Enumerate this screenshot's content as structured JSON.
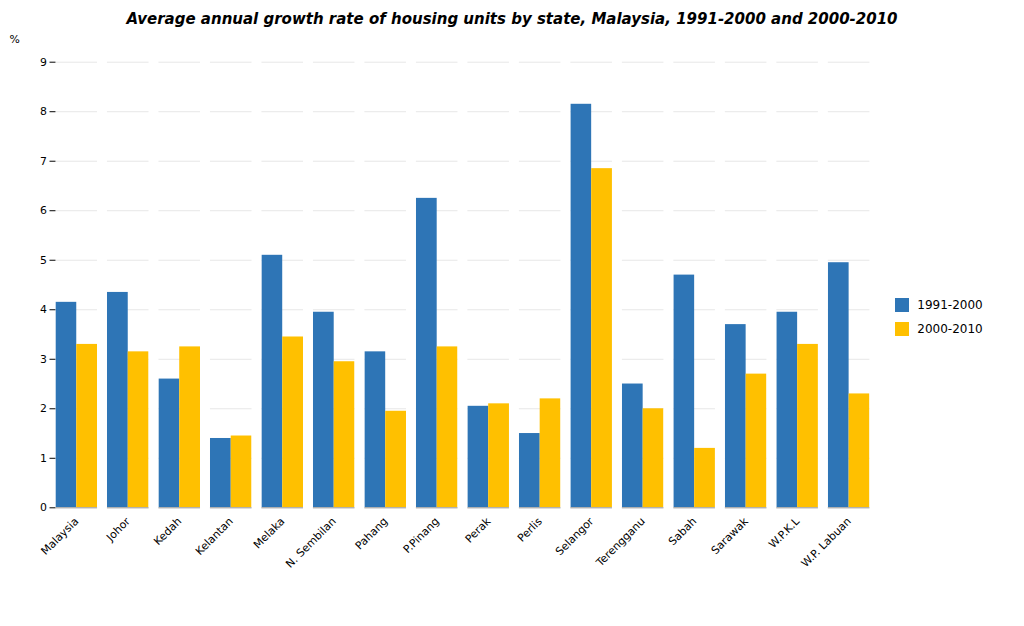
{
  "chart_data": {
    "type": "bar",
    "title": "Average annual growth rate  of housing units by state, Malaysia, 1991-2000 and 2000-2010",
    "categories": [
      "Malaysia",
      "Johor",
      "Kedah",
      "Kelantan",
      "Melaka",
      "N. Sembilan",
      "Pahang",
      "P.Pinang",
      "Perak",
      "Perlis",
      "Selangor",
      "Terengganu",
      "Sabah",
      "Sarawak",
      "W.P.K.L",
      "W.P. Labuan"
    ],
    "series": [
      {
        "name": "1991-2000",
        "color": "#2E75B6",
        "values": [
          4.15,
          4.35,
          2.6,
          1.4,
          5.1,
          3.95,
          3.15,
          6.25,
          2.05,
          1.5,
          8.15,
          2.5,
          4.7,
          3.7,
          3.95,
          4.95
        ]
      },
      {
        "name": "2000-2010",
        "color": "#FFC000",
        "values": [
          3.3,
          3.15,
          3.25,
          1.45,
          3.45,
          2.95,
          1.95,
          3.25,
          2.1,
          2.2,
          6.85,
          2.0,
          1.2,
          2.7,
          3.3,
          2.3
        ]
      }
    ],
    "ylabel": "%",
    "ylim": [
      0,
      9.0
    ],
    "yticks": [
      0,
      1,
      2,
      3,
      4,
      5,
      6,
      7,
      8,
      9
    ],
    "grid": true,
    "legend": "right"
  }
}
